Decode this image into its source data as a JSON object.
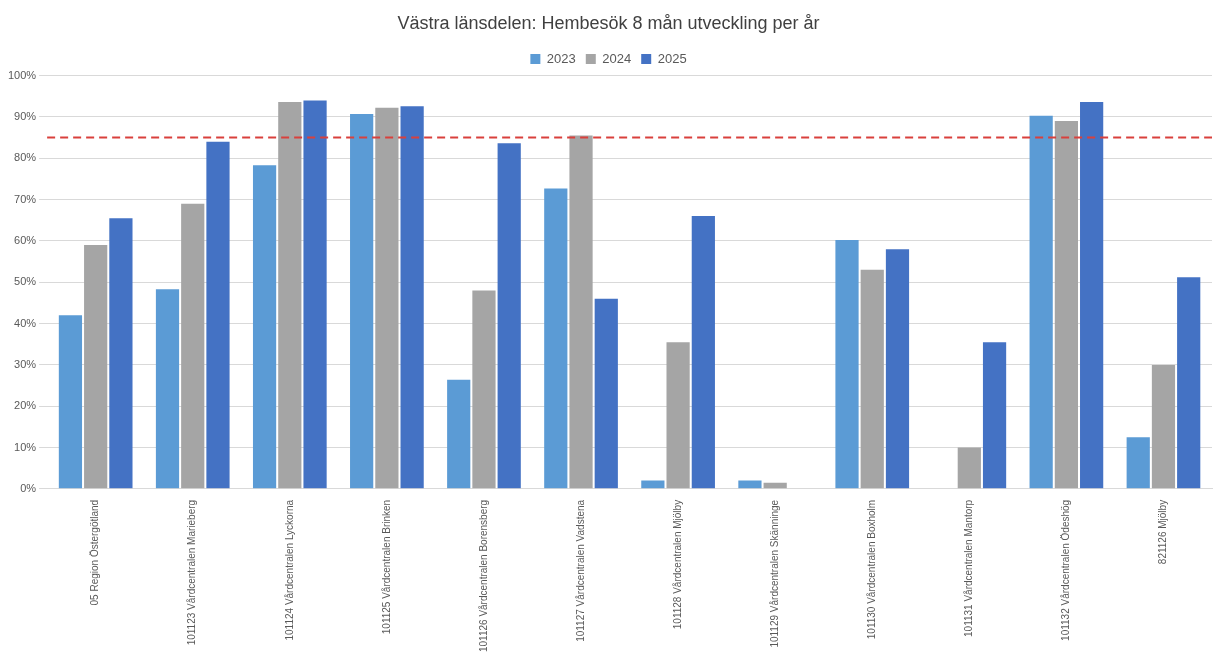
{
  "chart_data": {
    "type": "bar",
    "title": "Västra länsdelen: Hembesök 8 mån utveckling per år",
    "categories": [
      "05 Region Östergötland",
      "101123 Vårdcentralen Marieberg",
      "101124 Vårdcentralen Lyckorna",
      "101125 Vårdcentralen Brinken",
      "101126 Vårdcentralen Borensberg",
      "101127 Vårdcentralen Vadstena",
      "101128 Vårdcentralen Mjölby",
      "101129 Vårdcentralen Skänninge",
      "101130 Vårdcentralen Boxholm",
      "101131 Vårdcentralen Mantorp",
      "101132 Vårdcentralen Ödeshög",
      "821126 Mjölby"
    ],
    "series": [
      {
        "name": "2023",
        "color": "#5b9bd5",
        "values": [
          42,
          48.3,
          78.3,
          90.7,
          26.4,
          72.7,
          2,
          2,
          60.2,
          null,
          90.3,
          12.5
        ]
      },
      {
        "name": "2024",
        "color": "#a5a5a5",
        "values": [
          59,
          69,
          93.6,
          92.2,
          48,
          85.5,
          35.5,
          1.5,
          53,
          10,
          89,
          30
        ]
      },
      {
        "name": "2025",
        "color": "#4472c4",
        "values": [
          65.5,
          84,
          94,
          92.6,
          83.6,
          46,
          66,
          null,
          58,
          35.5,
          93.6,
          51.2
        ]
      }
    ],
    "ylim": [
      0,
      100
    ],
    "yticks": [
      {
        "value": 0,
        "label": "0%"
      },
      {
        "value": 10,
        "label": "10%"
      },
      {
        "value": 20,
        "label": "20%"
      },
      {
        "value": 30,
        "label": "30%"
      },
      {
        "value": 40,
        "label": "40%"
      },
      {
        "value": 50,
        "label": "50%"
      },
      {
        "value": 60,
        "label": "60%"
      },
      {
        "value": 70,
        "label": "70%"
      },
      {
        "value": 80,
        "label": "80%"
      },
      {
        "value": 90,
        "label": "90%"
      },
      {
        "value": 100,
        "label": "100%"
      }
    ],
    "ref_lines": [
      {
        "axis": "y",
        "value": 85,
        "color": "#d9403c",
        "line_style": "dashed"
      }
    ],
    "grid": "y",
    "legend": "top"
  }
}
